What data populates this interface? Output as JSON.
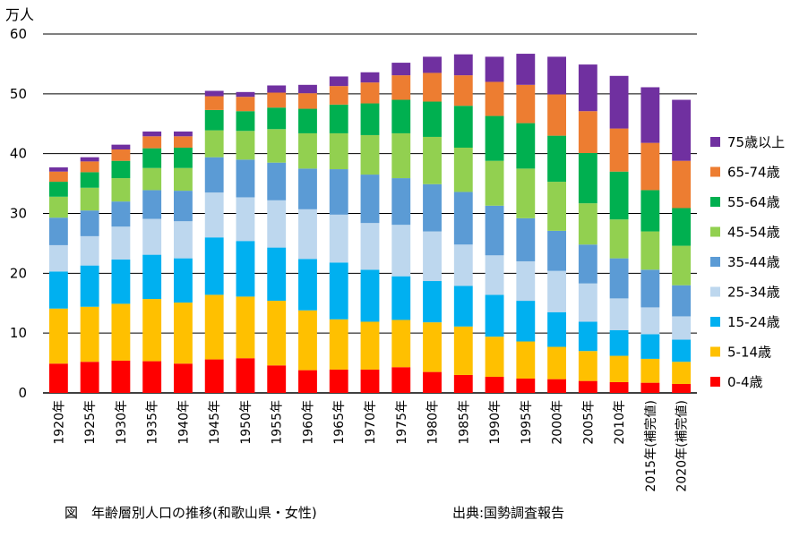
{
  "chart_data": {
    "type": "bar",
    "stacked": true,
    "ylabel": "万人",
    "ylim": [
      0,
      60
    ],
    "yticks": [
      0,
      10,
      20,
      30,
      40,
      50,
      60
    ],
    "grid": "horizontal",
    "legend_position": "right",
    "categories": [
      "1920年",
      "1925年",
      "1930年",
      "1935年",
      "1940年",
      "1945年",
      "1950年",
      "1955年",
      "1960年",
      "1965年",
      "1970年",
      "1975年",
      "1980年",
      "1985年",
      "1990年",
      "1995年",
      "2000年",
      "2005年",
      "2010年",
      "2015年(補完値)",
      "2020年(補完値)"
    ],
    "series": [
      {
        "name": "0-4歳",
        "color": "#ff0000",
        "values": [
          4.9,
          5.2,
          5.4,
          5.3,
          4.9,
          5.6,
          5.8,
          4.6,
          3.8,
          3.9,
          3.9,
          4.3,
          3.5,
          3.0,
          2.7,
          2.4,
          2.3,
          2.0,
          1.8,
          1.7,
          1.5
        ]
      },
      {
        "name": "5-14歳",
        "color": "#ffc000",
        "values": [
          9.2,
          9.2,
          9.5,
          10.4,
          10.2,
          10.8,
          10.3,
          10.8,
          10.0,
          8.4,
          8.0,
          7.9,
          8.3,
          8.1,
          6.7,
          6.2,
          5.4,
          5.0,
          4.4,
          4.0,
          3.7
        ]
      },
      {
        "name": "15-24歳",
        "color": "#00b0f0",
        "values": [
          6.2,
          6.9,
          7.4,
          7.4,
          7.4,
          9.6,
          9.3,
          8.9,
          8.6,
          9.5,
          8.7,
          7.3,
          6.9,
          6.8,
          7.0,
          6.8,
          5.8,
          4.9,
          4.3,
          4.1,
          3.7
        ]
      },
      {
        "name": "25-34歳",
        "color": "#bdd7ee",
        "values": [
          4.4,
          4.9,
          5.5,
          6.0,
          6.2,
          7.5,
          7.3,
          7.9,
          8.3,
          8.0,
          7.8,
          8.6,
          8.3,
          6.9,
          6.6,
          6.6,
          6.9,
          6.4,
          5.3,
          4.5,
          3.9
        ]
      },
      {
        "name": "35-44歳",
        "color": "#5b9bd5",
        "values": [
          4.6,
          4.3,
          4.2,
          4.8,
          5.1,
          5.9,
          6.3,
          6.3,
          6.8,
          7.6,
          8.1,
          7.8,
          7.9,
          8.8,
          8.3,
          7.2,
          6.7,
          6.5,
          6.7,
          6.3,
          5.2
        ]
      },
      {
        "name": "45-54歳",
        "color": "#92d050",
        "values": [
          3.5,
          3.8,
          3.9,
          3.7,
          3.8,
          4.5,
          4.8,
          5.6,
          5.9,
          6.0,
          6.6,
          7.5,
          7.9,
          7.4,
          7.5,
          8.3,
          8.2,
          6.9,
          6.5,
          6.4,
          6.6
        ]
      },
      {
        "name": "55-64歳",
        "color": "#00b050",
        "values": [
          2.5,
          2.6,
          2.9,
          3.3,
          3.4,
          3.4,
          3.3,
          3.6,
          4.1,
          4.8,
          5.3,
          5.6,
          5.9,
          7.0,
          7.5,
          7.6,
          7.7,
          8.4,
          8.0,
          6.9,
          6.3
        ]
      },
      {
        "name": "65-74歳",
        "color": "#ed7d31",
        "values": [
          1.7,
          1.8,
          1.9,
          2.0,
          1.9,
          2.3,
          2.4,
          2.5,
          2.6,
          3.1,
          3.5,
          4.1,
          4.8,
          5.1,
          5.7,
          6.4,
          6.9,
          7.0,
          7.2,
          7.9,
          7.9
        ]
      },
      {
        "name": "75歳以上",
        "color": "#7030a0",
        "values": [
          0.7,
          0.7,
          0.8,
          0.8,
          0.8,
          0.9,
          0.8,
          1.2,
          1.4,
          1.6,
          1.7,
          2.1,
          2.7,
          3.5,
          4.2,
          5.2,
          6.3,
          7.8,
          8.8,
          9.3,
          10.2
        ]
      }
    ]
  },
  "captions": {
    "title": "図　年齢層別人口の推移(和歌山県・女性)",
    "source": "出典:国勢調査報告"
  }
}
